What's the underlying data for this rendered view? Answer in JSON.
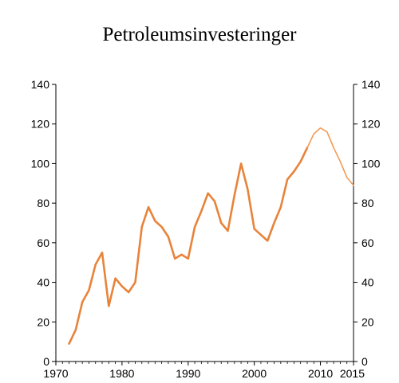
{
  "chart_data": {
    "type": "line",
    "title": "Petroleumsinvesteringer",
    "xlabel": "",
    "ylabel": "",
    "xlim": [
      1970,
      2015
    ],
    "ylim": [
      0,
      140
    ],
    "x_ticks": [
      1970,
      1980,
      1990,
      2000,
      2010,
      2015
    ],
    "y_ticks": [
      0,
      20,
      40,
      60,
      80,
      100,
      120,
      140
    ],
    "y_ticks_right": [
      0,
      20,
      40,
      60,
      80,
      100,
      120,
      140
    ],
    "grid": false,
    "colors": {
      "line_main": "#E8833A",
      "line_projection": "#F39A55"
    },
    "series": [
      {
        "x": [
          1972,
          1973,
          1974,
          1975,
          1976,
          1977,
          1978,
          1979,
          1980,
          1981,
          1982,
          1983,
          1984,
          1985,
          1986,
          1987,
          1988,
          1989,
          1990,
          1991,
          1992,
          1993,
          1994,
          1995,
          1996,
          1997,
          1998,
          1999,
          2000,
          2001,
          2002,
          2003,
          2004,
          2005,
          2006,
          2007,
          2008
        ],
        "values": [
          9,
          16,
          30,
          36,
          49,
          55,
          28,
          42,
          38,
          35,
          40,
          68,
          78,
          71,
          68,
          63,
          52,
          54,
          52,
          68,
          76,
          85,
          81,
          70,
          66,
          84,
          100,
          87,
          67,
          64,
          61,
          70,
          78,
          92,
          96,
          101,
          108
        ]
      },
      {
        "x": [
          2008,
          2009,
          2010,
          2011,
          2012,
          2013,
          2014,
          2015
        ],
        "values": [
          108,
          115,
          118,
          116,
          108,
          101,
          93,
          89
        ]
      }
    ]
  }
}
